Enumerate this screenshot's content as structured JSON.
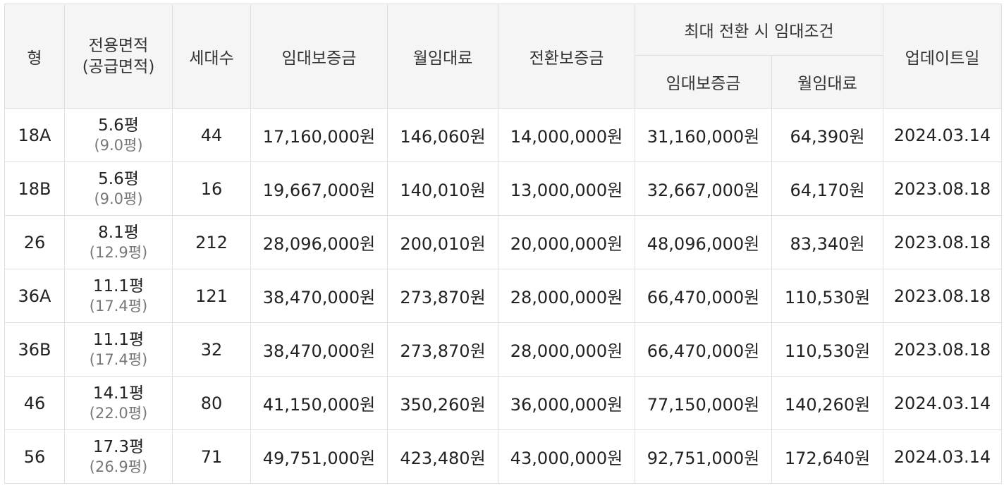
{
  "headers": {
    "type": "형",
    "area_line1": "전용면적",
    "area_line2": "(공급면적)",
    "households": "세대수",
    "deposit": "임대보증금",
    "monthly_rent": "월임대료",
    "conversion_deposit": "전환보증금",
    "max_conversion_group": "최대 전환 시 임대조건",
    "max_deposit": "임대보증금",
    "max_monthly_rent": "월임대료",
    "updated": "업데이트일"
  },
  "rows": [
    {
      "type": "18A",
      "area": "5.6평",
      "supply_area": "(9.0평)",
      "households": "44",
      "deposit": "17,160,000원",
      "monthly_rent": "146,060원",
      "conversion_deposit": "14,000,000원",
      "max_deposit": "31,160,000원",
      "max_monthly_rent": "64,390원",
      "updated": "2024.03.14"
    },
    {
      "type": "18B",
      "area": "5.6평",
      "supply_area": "(9.0평)",
      "households": "16",
      "deposit": "19,667,000원",
      "monthly_rent": "140,010원",
      "conversion_deposit": "13,000,000원",
      "max_deposit": "32,667,000원",
      "max_monthly_rent": "64,170원",
      "updated": "2023.08.18"
    },
    {
      "type": "26",
      "area": "8.1평",
      "supply_area": "(12.9평)",
      "households": "212",
      "deposit": "28,096,000원",
      "monthly_rent": "200,010원",
      "conversion_deposit": "20,000,000원",
      "max_deposit": "48,096,000원",
      "max_monthly_rent": "83,340원",
      "updated": "2023.08.18"
    },
    {
      "type": "36A",
      "area": "11.1평",
      "supply_area": "(17.4평)",
      "households": "121",
      "deposit": "38,470,000원",
      "monthly_rent": "273,870원",
      "conversion_deposit": "28,000,000원",
      "max_deposit": "66,470,000원",
      "max_monthly_rent": "110,530원",
      "updated": "2023.08.18"
    },
    {
      "type": "36B",
      "area": "11.1평",
      "supply_area": "(17.4평)",
      "households": "32",
      "deposit": "38,470,000원",
      "monthly_rent": "273,870원",
      "conversion_deposit": "28,000,000원",
      "max_deposit": "66,470,000원",
      "max_monthly_rent": "110,530원",
      "updated": "2023.08.18"
    },
    {
      "type": "46",
      "area": "14.1평",
      "supply_area": "(22.0평)",
      "households": "80",
      "deposit": "41,150,000원",
      "monthly_rent": "350,260원",
      "conversion_deposit": "36,000,000원",
      "max_deposit": "77,150,000원",
      "max_monthly_rent": "140,260원",
      "updated": "2024.03.14"
    },
    {
      "type": "56",
      "area": "17.3평",
      "supply_area": "(26.9평)",
      "households": "71",
      "deposit": "49,751,000원",
      "monthly_rent": "423,480원",
      "conversion_deposit": "43,000,000원",
      "max_deposit": "92,751,000원",
      "max_monthly_rent": "172,640원",
      "updated": "2024.03.14"
    }
  ]
}
